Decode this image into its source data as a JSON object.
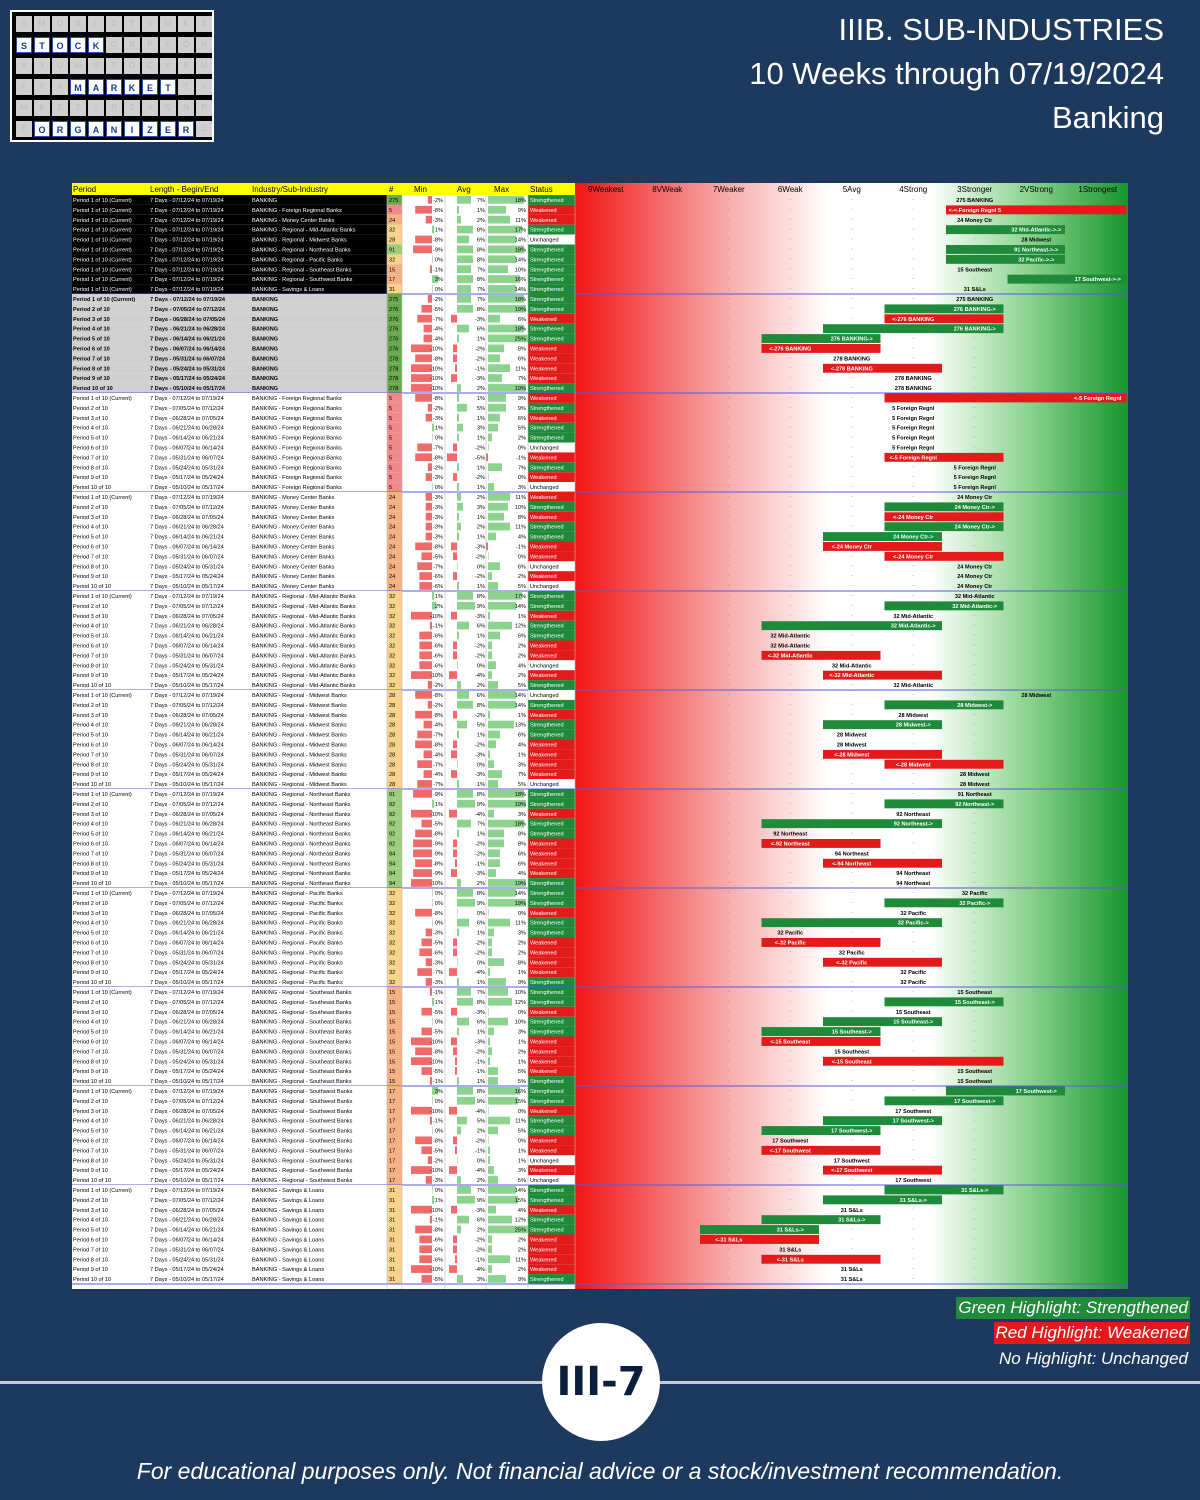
{
  "logo": {
    "words": [
      "STOCK",
      "MARKET",
      "ORGANIZER"
    ]
  },
  "title": {
    "line1": "IIIB. SUB-INDUSTRIES",
    "line2": "10 Weeks through 07/19/2024",
    "line3": "Banking"
  },
  "legend": {
    "green": "Green Highlight: Strengthened",
    "red": "Red Highlight: Weakened",
    "none": "No Highlight: Unchanged"
  },
  "page_number": "III-7",
  "disclaimer": "For educational purposes only. Not financial advice or a stock/investment recommendation.",
  "colors": {
    "background": "#1d3a5e",
    "header": "#ffff00",
    "strengthened": "#1e8a3a",
    "weakened": "#e21a1a",
    "block_divider": "#5a5ad8"
  },
  "chart_data": {
    "type": "table",
    "title": "IIIB. SUB-INDUSTRIES — Banking",
    "columns": [
      "Period",
      "Length - Begin/End",
      "Industry/Sub-Industry",
      "#",
      "Min",
      "Avg",
      "Max",
      "Status",
      "9Weakest",
      "8VWeak",
      "7Weaker",
      "6Weak",
      "5Avg",
      "4Strong",
      "3Stronger",
      "2VStrong",
      "1Strongest"
    ],
    "periods": [
      {
        "label": "Period 1 of 10 (Current)",
        "range": "7 Days - 07/12/24 to 07/19/24"
      },
      {
        "label": "Period 2 of 10",
        "range": "7 Days - 07/05/24 to 07/12/24"
      },
      {
        "label": "Period 3 of 10",
        "range": "7 Days - 06/28/24 to 07/05/24"
      },
      {
        "label": "Period 4 of 10",
        "range": "7 Days - 06/21/24 to 06/28/24"
      },
      {
        "label": "Period 5 of 10",
        "range": "7 Days - 06/14/24 to 06/21/24"
      },
      {
        "label": "Period 6 of 10",
        "range": "7 Days - 06/07/24 to 06/14/24"
      },
      {
        "label": "Period 7 of 10",
        "range": "7 Days - 05/31/24 to 06/07/24"
      },
      {
        "label": "Period 8 of 10",
        "range": "7 Days - 05/24/24 to 05/31/24"
      },
      {
        "label": "Period 9 of 10",
        "range": "7 Days - 05/17/24 to 05/24/24"
      },
      {
        "label": "Period 10 of 10",
        "range": "7 Days - 05/10/24 to 05/17/24"
      }
    ],
    "summary": [
      {
        "industry": "BANKING",
        "n": 275,
        "min": -2,
        "avg": 7,
        "max": 18,
        "status": "Strengthened",
        "from": 3,
        "to": 3,
        "label": "275 BANKING"
      },
      {
        "industry": "BANKING - Foreign Regional Banks",
        "n": 5,
        "min": -8,
        "avg": 1,
        "max": 9,
        "status": "Weakened",
        "from": 1,
        "to": 3,
        "label": "<-Foreign Regnl 5"
      },
      {
        "industry": "BANKING - Money Center Banks",
        "n": 24,
        "min": -3,
        "avg": 2,
        "max": 11,
        "status": "Weakened",
        "from": 3,
        "to": 3,
        "label": "24 Money Ctr"
      },
      {
        "industry": "BANKING - Regional - Mid-Atlantic Banks",
        "n": 32,
        "min": 1,
        "avg": 8,
        "max": 17,
        "status": "Strengthened",
        "from": 3,
        "to": 2,
        "label": "32 Mid-Atlantic->"
      },
      {
        "industry": "BANKING - Regional - Midwest Banks",
        "n": 28,
        "min": -8,
        "avg": 6,
        "max": 14,
        "status": "Unchanged",
        "from": 2,
        "to": 2,
        "label": "28 Midwest"
      },
      {
        "industry": "BANKING - Regional - Northeast Banks",
        "n": 91,
        "min": -9,
        "avg": 8,
        "max": 18,
        "status": "Strengthened",
        "from": 3,
        "to": 2,
        "label": "91 Northeast->"
      },
      {
        "industry": "BANKING - Regional - Pacific Banks",
        "n": 32,
        "min": 0,
        "avg": 8,
        "max": 14,
        "status": "Strengthened",
        "from": 3,
        "to": 2,
        "label": "32 Pacific->"
      },
      {
        "industry": "BANKING - Regional - Southeast Banks",
        "n": 15,
        "min": -1,
        "avg": 7,
        "max": 10,
        "status": "Strengthened",
        "from": 3,
        "to": 3,
        "label": "15 Southeast"
      },
      {
        "industry": "BANKING - Regional - Southwest Banks",
        "n": 17,
        "min": 3,
        "avg": 8,
        "max": 16,
        "status": "Strengthened",
        "from": 2,
        "to": 1,
        "label": "17 Southwest->"
      },
      {
        "industry": "BANKING - Savings & Loans",
        "n": 31,
        "min": 0,
        "avg": 7,
        "max": 14,
        "status": "Strengthened",
        "from": 3,
        "to": 3,
        "label": "31 S&Ls"
      }
    ],
    "blocks": [
      {
        "industry": "BANKING",
        "short": "BANKING",
        "n": [
          275,
          276,
          276,
          276,
          276,
          276,
          278,
          278,
          278,
          278
        ],
        "min": [
          -2,
          -5,
          -7,
          -4,
          -4,
          -10,
          -8,
          -10,
          -10,
          -10
        ],
        "avg": [
          7,
          8,
          -3,
          6,
          1,
          -2,
          -2,
          -1,
          -3,
          2
        ],
        "max": [
          18,
          19,
          6,
          18,
          25,
          8,
          6,
          11,
          7,
          19
        ],
        "status": [
          "Strengthened",
          "Strengthened",
          "Weakened",
          "Strengthened",
          "Strengthened",
          "Weakened",
          "Weakened",
          "Weakened",
          "Weakened",
          "Strengthened"
        ],
        "rank": [
          3,
          3,
          4,
          3,
          5,
          6,
          5,
          5,
          4,
          4
        ]
      },
      {
        "industry": "BANKING - Foreign Regional Banks",
        "short": "Foreign Regnl",
        "n": [
          5,
          5,
          5,
          5,
          5,
          5,
          5,
          5,
          5,
          5
        ],
        "min": [
          -8,
          -2,
          -3,
          1,
          0,
          -7,
          -8,
          -2,
          -3,
          0
        ],
        "avg": [
          1,
          5,
          1,
          3,
          1,
          -2,
          -5,
          1,
          -2,
          1
        ],
        "max": [
          9,
          9,
          6,
          5,
          2,
          0,
          -1,
          7,
          0,
          3
        ],
        "status": [
          "Weakened",
          "Strengthened",
          "Weakened",
          "Strengthened",
          "Strengthened",
          "Unchanged",
          "Weakened",
          "Strengthened",
          "Weakened",
          "Unchanged"
        ],
        "rank": [
          1,
          4,
          4,
          4,
          4,
          4,
          4,
          3,
          3,
          3
        ]
      },
      {
        "industry": "BANKING - Money Center Banks",
        "short": "Money Ctr",
        "n": [
          24,
          24,
          24,
          24,
          24,
          24,
          24,
          24,
          24,
          24
        ],
        "min": [
          -3,
          -3,
          -3,
          -3,
          -3,
          -8,
          -5,
          -7,
          -6,
          -6
        ],
        "avg": [
          2,
          3,
          1,
          2,
          1,
          -3,
          -2,
          0,
          -2,
          1
        ],
        "max": [
          11,
          10,
          8,
          11,
          4,
          -1,
          0,
          6,
          2,
          5
        ],
        "status": [
          "Weakened",
          "Strengthened",
          "Weakened",
          "Strengthened",
          "Strengthened",
          "Weakened",
          "Weakened",
          "Unchanged",
          "Weakened",
          "Unchanged"
        ],
        "rank": [
          3,
          3,
          4,
          3,
          4,
          5,
          4,
          3,
          3,
          3
        ]
      },
      {
        "industry": "BANKING - Regional - Mid-Atlantic Banks",
        "short": "Mid-Atlantic",
        "n": [
          32,
          32,
          32,
          32,
          32,
          32,
          32,
          32,
          32,
          32
        ],
        "min": [
          1,
          2,
          -10,
          -1,
          -6,
          -6,
          -6,
          -6,
          -10,
          -2
        ],
        "avg": [
          8,
          9,
          -3,
          6,
          1,
          -2,
          -2,
          0,
          -4,
          2
        ],
        "max": [
          17,
          14,
          1,
          12,
          6,
          2,
          2,
          4,
          2,
          5
        ],
        "status": [
          "Strengthened",
          "Strengthened",
          "Weakened",
          "Strengthened",
          "Strengthened",
          "Weakened",
          "Weakened",
          "Unchanged",
          "Weakened",
          "Strengthened"
        ],
        "rank": [
          3,
          3,
          4,
          4,
          6,
          6,
          6,
          5,
          5,
          4
        ]
      },
      {
        "industry": "BANKING - Regional - Midwest Banks",
        "short": "Midwest",
        "n": [
          28,
          28,
          28,
          28,
          28,
          28,
          28,
          28,
          28,
          28
        ],
        "min": [
          -8,
          -2,
          -8,
          -4,
          -7,
          -8,
          -4,
          -7,
          -4,
          -7
        ],
        "avg": [
          6,
          8,
          -2,
          5,
          1,
          -2,
          -3,
          0,
          -3,
          1
        ],
        "max": [
          14,
          14,
          1,
          13,
          6,
          4,
          1,
          3,
          7,
          5
        ],
        "status": [
          "Unchanged",
          "Strengthened",
          "Weakened",
          "Strengthened",
          "Strengthened",
          "Weakened",
          "Weakened",
          "Weakened",
          "Weakened",
          "Unchanged"
        ],
        "rank": [
          2,
          3,
          4,
          4,
          5,
          5,
          5,
          4,
          3,
          3
        ]
      },
      {
        "industry": "BANKING - Regional - Northeast Banks",
        "short": "Northeast",
        "n": [
          91,
          92,
          92,
          92,
          92,
          92,
          94,
          94,
          94,
          94
        ],
        "min": [
          -9,
          1,
          -10,
          -5,
          -8,
          -9,
          -9,
          -8,
          -9,
          -10
        ],
        "avg": [
          8,
          9,
          -4,
          7,
          1,
          -2,
          -2,
          -1,
          -3,
          2
        ],
        "max": [
          18,
          19,
          3,
          18,
          8,
          8,
          6,
          6,
          4,
          19
        ],
        "status": [
          "Strengthened",
          "Strengthened",
          "Weakened",
          "Strengthened",
          "Strengthened",
          "Weakened",
          "Weakened",
          "Weakened",
          "Weakened",
          "Strengthened"
        ],
        "rank": [
          3,
          3,
          4,
          4,
          6,
          6,
          5,
          5,
          4,
          4
        ]
      },
      {
        "industry": "BANKING - Regional - Pacific Banks",
        "short": "Pacific",
        "n": [
          32,
          32,
          32,
          32,
          32,
          32,
          32,
          32,
          32,
          32
        ],
        "min": [
          0,
          0,
          -8,
          0,
          -3,
          -5,
          -6,
          -3,
          -7,
          -3
        ],
        "avg": [
          8,
          9,
          0,
          6,
          1,
          -2,
          -2,
          0,
          -4,
          1
        ],
        "max": [
          14,
          19,
          0,
          11,
          3,
          2,
          2,
          8,
          1,
          9
        ],
        "status": [
          "Strengthened",
          "Strengthened",
          "Weakened",
          "Strengthened",
          "Strengthened",
          "Weakened",
          "Weakened",
          "Weakened",
          "Weakened",
          "Strengthened"
        ],
        "rank": [
          3,
          3,
          4,
          4,
          6,
          6,
          5,
          5,
          4,
          4
        ]
      },
      {
        "industry": "BANKING - Regional - Southeast Banks",
        "short": "Southeast",
        "n": [
          15,
          15,
          15,
          15,
          15,
          15,
          15,
          15,
          15,
          15
        ],
        "min": [
          -1,
          1,
          -5,
          0,
          -5,
          -10,
          -8,
          -10,
          -5,
          -1
        ],
        "avg": [
          7,
          8,
          -3,
          6,
          1,
          -3,
          -2,
          -1,
          -1,
          1
        ],
        "max": [
          10,
          12,
          0,
          10,
          3,
          1,
          2,
          1,
          5,
          5
        ],
        "status": [
          "Strengthened",
          "Strengthened",
          "Weakened",
          "Strengthened",
          "Strengthened",
          "Weakened",
          "Weakened",
          "Weakened",
          "Weakened",
          "Strengthened"
        ],
        "rank": [
          3,
          3,
          4,
          4,
          5,
          6,
          5,
          5,
          3,
          3
        ]
      },
      {
        "industry": "BANKING - Regional - Southwest Banks",
        "short": "Southwest",
        "n": [
          17,
          17,
          17,
          17,
          17,
          17,
          17,
          17,
          17,
          17
        ],
        "min": [
          3,
          0,
          -10,
          -1,
          0,
          -8,
          -5,
          -2,
          -10,
          -3
        ],
        "avg": [
          8,
          9,
          -4,
          5,
          2,
          -2,
          -1,
          0,
          -4,
          2
        ],
        "max": [
          16,
          15,
          0,
          11,
          5,
          0,
          1,
          1,
          3,
          5
        ],
        "status": [
          "Strengthened",
          "Strengthened",
          "Weakened",
          "Strengthened",
          "Strengthened",
          "Weakened",
          "Weakened",
          "Unchanged",
          "Weakened",
          "Unchanged"
        ],
        "rank": [
          2,
          3,
          4,
          4,
          5,
          6,
          6,
          5,
          5,
          4
        ]
      },
      {
        "industry": "BANKING - Savings & Loans",
        "short": "S&Ls",
        "n": [
          31,
          31,
          31,
          31,
          31,
          31,
          31,
          31,
          31,
          31
        ],
        "min": [
          0,
          1,
          -10,
          -1,
          -8,
          -6,
          -6,
          -6,
          -10,
          -5
        ],
        "avg": [
          7,
          9,
          -3,
          6,
          2,
          -2,
          -2,
          -1,
          -4,
          3
        ],
        "max": [
          14,
          15,
          4,
          12,
          25,
          2,
          2,
          11,
          2,
          9
        ],
        "status": [
          "Strengthened",
          "Strengthened",
          "Weakened",
          "Strengthened",
          "Strengthened",
          "Weakened",
          "Weakened",
          "Weakened",
          "Weakened",
          "Strengthened"
        ],
        "rank": [
          3,
          4,
          5,
          5,
          6,
          7,
          6,
          6,
          5,
          5
        ]
      }
    ]
  }
}
